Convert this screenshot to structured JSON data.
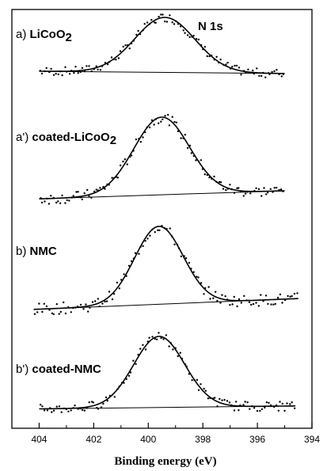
{
  "chart_data": {
    "type": "scatter",
    "title": "N 1s",
    "xlabel": "Binding energy (eV)",
    "ylabel": "",
    "xlim": [
      405,
      394
    ],
    "x_reversed": true,
    "x_ticks": [
      404,
      402,
      400,
      398,
      396,
      394
    ],
    "x_tick_labels": [
      "404",
      "402",
      "400",
      "398",
      "396",
      "394"
    ],
    "grid": false,
    "panels": [
      {
        "label_prefix": "a)",
        "label_name": "LiCoO",
        "label_sub": "2",
        "peak_center": 399.4,
        "peak_fwhm": 2.6,
        "baseline_left": 0.96,
        "baseline_right": 0.84,
        "peak_height": 3.8
      },
      {
        "label_prefix": "a')",
        "label_name": "coated-LiCoO",
        "label_sub": "2",
        "peak_center": 399.5,
        "peak_fwhm": 2.4,
        "baseline_left": 0.5,
        "baseline_right": 0.94,
        "peak_height": 4.9
      },
      {
        "label_prefix": "b)",
        "label_name": "NMC",
        "label_sub": "",
        "peak_center": 399.6,
        "peak_fwhm": 2.1,
        "baseline_left": 0.56,
        "baseline_right": 1.1,
        "peak_height": 4.7
      },
      {
        "label_prefix": "b')",
        "label_name": "coated-NMC",
        "label_sub": "",
        "peak_center": 399.6,
        "peak_fwhm": 2.2,
        "baseline_left": 0.46,
        "baseline_right": 0.64,
        "peak_height": 4.9
      }
    ]
  }
}
